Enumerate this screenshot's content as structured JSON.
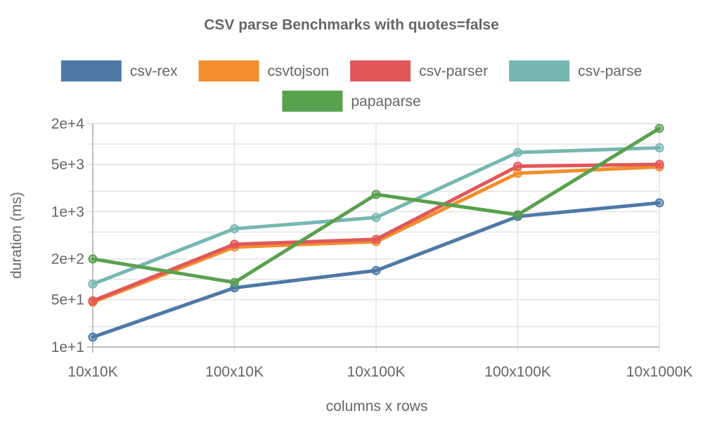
{
  "chart_data": {
    "type": "line",
    "title": "CSV parse Benchmarks with quotes=false",
    "xlabel": "columns x rows",
    "ylabel": "duration (ms)",
    "yscale": "log",
    "ylim": [
      10,
      20000
    ],
    "yticks": [
      {
        "value": 10,
        "label": "1e+1"
      },
      {
        "value": 50,
        "label": "5e+1"
      },
      {
        "value": 200,
        "label": "2e+2"
      },
      {
        "value": 1000,
        "label": "1e+3"
      },
      {
        "value": 5000,
        "label": "5e+3"
      },
      {
        "value": 20000,
        "label": "2e+4"
      }
    ],
    "categories": [
      "10x10K",
      "100x10K",
      "10x100K",
      "100x100K",
      "10x1000K"
    ],
    "grid": true,
    "legend_position": "top",
    "series": [
      {
        "name": "csv-rex",
        "color": "#4e79a7",
        "values": [
          14,
          75,
          135,
          850,
          1350
        ]
      },
      {
        "name": "csvtojson",
        "color": "#f28e2b",
        "values": [
          46,
          300,
          360,
          3700,
          4600
        ]
      },
      {
        "name": "csv-parser",
        "color": "#e15759",
        "values": [
          48,
          330,
          390,
          4700,
          5000
        ]
      },
      {
        "name": "csv-parse",
        "color": "#76b7b2",
        "values": [
          85,
          560,
          820,
          7500,
          8800
        ]
      },
      {
        "name": "papaparse",
        "color": "#59a14f",
        "values": [
          200,
          90,
          1800,
          900,
          17000
        ]
      }
    ]
  }
}
